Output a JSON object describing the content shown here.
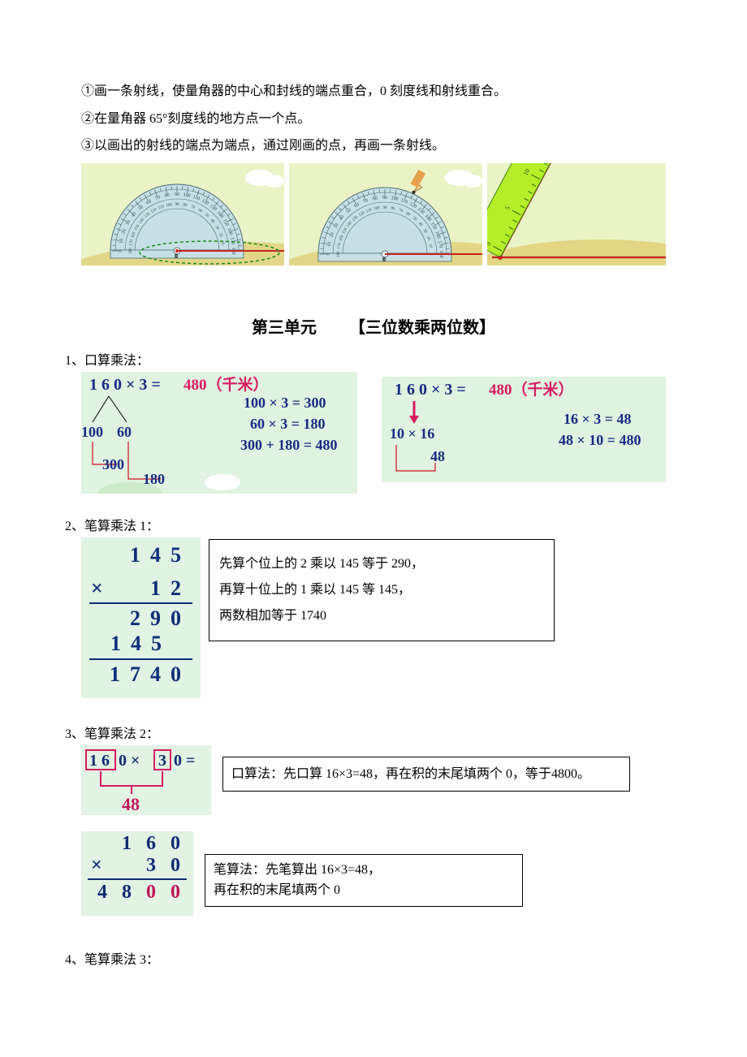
{
  "instructions": {
    "line1": "①画一条射线，使量角器的中心和封线的端点重合，0 刻度线和射线重合。",
    "line2": "②在量角器 65°刻度线的地方点一个点。",
    "line3": "③以画出的射线的端点为端点，通过刚画的点，再画一条射线。"
  },
  "protractors": {
    "panel_bg": "#e9f3c6",
    "hill_color": "#e0d078",
    "prot_fill": "#c7e0e6",
    "prot_stroke": "#4a6b72",
    "tick_color": "#34555c",
    "dashed_color": "#1a8a1a",
    "line_color": "#c82020",
    "ruler_fill": "#b6ee2a",
    "ruler_stroke": "#3a8a12",
    "pencil_body": "#e6a24a",
    "pencil_tip": "#2b2b2b",
    "label_color": "#2a4a52",
    "key_labels": [
      "0",
      "10",
      "20",
      "30",
      "40",
      "50",
      "60",
      "70",
      "80",
      "90",
      "100",
      "110",
      "120",
      "130",
      "140",
      "150",
      "160",
      "170",
      "180"
    ]
  },
  "unit": {
    "chapter": "第三单元",
    "title": "【三位数乘两位数】"
  },
  "sec1": {
    "heading": "1、口算乘法：",
    "panel_bg": "#dff3e0",
    "cloud_color": "#ffffff",
    "blue": "#182a84",
    "pink": "#d81b60",
    "red_line": "#d01020",
    "arrow_fill": "#d81b60",
    "left": {
      "expr": "1 6 0 × 3 =",
      "result": "480（千米）",
      "split_a": "100",
      "split_b": "60",
      "sum_a": "300",
      "sum_b": "180",
      "r1": "100 × 3 = 300",
      "r2": "60 × 3 = 180",
      "r3": "300 + 180 = 480"
    },
    "right": {
      "expr": "1 6 0 × 3 =",
      "result": "480（千米）",
      "mid": "10 × 16",
      "bot": "48",
      "r1": "16 × 3 = 48",
      "r2": "48 × 10 = 480"
    }
  },
  "sec2": {
    "heading": "2、笔算乘法 1：",
    "panel_bg": "#e1f3e2",
    "digit_color": "#0e2d7a",
    "rows": {
      "a": "145",
      "b": "12",
      "c": "290",
      "d": "145",
      "e": "1740",
      "symbol": "×"
    },
    "explain1": "先算个位上的 2 乘以 145 等于 290，",
    "explain2": "再算十位上的 1 乘以 145 等 145，",
    "explain3": "两数相加等于 1740"
  },
  "sec3": {
    "heading": "3、笔算乘法 2：",
    "box_pink": "#d81b60",
    "blue": "#102a74",
    "pink": "#c4145a",
    "partA": {
      "expr_highlight_a": "1 6",
      "expr_mid": "0 ×",
      "expr_highlight_b": "3",
      "expr_tail": "0 =",
      "result": "48",
      "text": "口算法：先口算 16×3=48，再在积的末尾填两个 0，等于4800。"
    },
    "partB": {
      "r1": "1 6 0",
      "r2_sym": "×",
      "r2": "3 0",
      "r3_blue": "4 8",
      "r3_pink": "0 0",
      "text1": "笔算法：先笔算出 16×3=48，",
      "text2": "再在积的末尾填两个 0"
    }
  },
  "sec4": {
    "heading": "4、笔算乘法 3："
  }
}
